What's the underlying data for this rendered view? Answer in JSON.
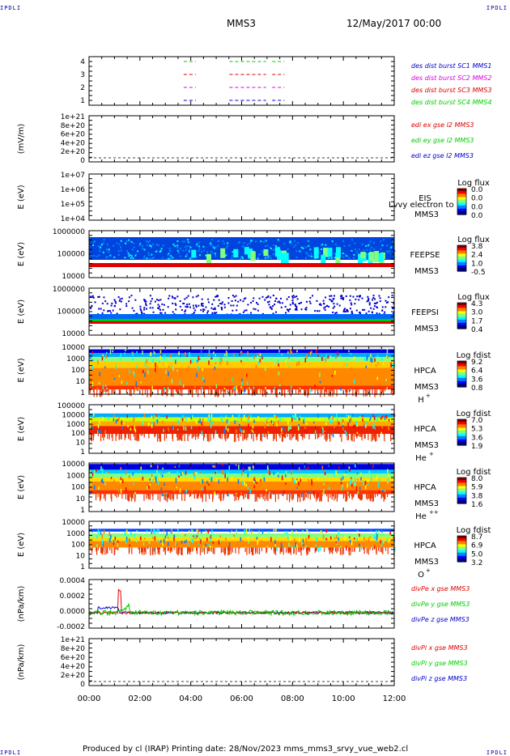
{
  "corner_mark": "IPDLI",
  "header": {
    "spacecraft": "MMS3",
    "date": "12/May/2017 00:00"
  },
  "footer": {
    "text": "Produced by cl (IRAP)   Printing date: 28/Nov/2023   mms_mms3_srvy_vue_web2.cl"
  },
  "colors": {
    "red": "#dd0000",
    "green": "#00cc00",
    "blue": "#0000cc",
    "magenta": "#dd00dd"
  },
  "chart_data": [
    {
      "type": "line",
      "id": "des",
      "ylabels": [
        "4",
        "3",
        "2",
        "1"
      ],
      "legend": [
        {
          "text": "des dist burst SC1 MMS1",
          "color": "#0000cc"
        },
        {
          "text": "des dist burst SC2 MMS2",
          "color": "#dd00dd"
        },
        {
          "text": "des dist burst SC3 MMS3",
          "color": "#dd0000"
        },
        {
          "text": "des dist burst SC4 MMS4",
          "color": "#00cc00"
        }
      ]
    },
    {
      "type": "line",
      "id": "edi",
      "ylabel": "(mV/m)",
      "ylabels": [
        "1e+21",
        "8e+20",
        "6e+20",
        "4e+20",
        "2e+20",
        "0"
      ],
      "legend": [
        {
          "text": "edi ex gse l2 MMS3",
          "color": "#dd0000"
        },
        {
          "text": "edi ey gse l2 MMS3",
          "color": "#00cc00"
        },
        {
          "text": "edi ez gse l2 MMS3",
          "color": "#0000cc"
        }
      ]
    },
    {
      "type": "heatmap",
      "id": "eis",
      "ylabel": "E (eV)",
      "ylabels": [
        "1e+07",
        "1e+06",
        "1e+05",
        "1e+04"
      ],
      "side": [
        "EIS",
        "MMS3"
      ],
      "overlay": "Lvvy electron to",
      "cbar_title": "Log flux",
      "cbar": [
        "0.0",
        "0.0",
        "0.0",
        "0.0"
      ]
    },
    {
      "type": "heatmap",
      "id": "feepse",
      "ylabel": "E (eV)",
      "ylabels": [
        "1000000",
        "100000",
        "10000"
      ],
      "side": [
        "FEEPSE",
        "MMS3"
      ],
      "cbar_title": "Log flux",
      "cbar": [
        "3.8",
        "2.4",
        "1.0",
        "-0.5"
      ]
    },
    {
      "type": "heatmap",
      "id": "feepsi",
      "ylabel": "E (eV)",
      "ylabels": [
        "1000000",
        "100000",
        "10000"
      ],
      "side": [
        "FEEPSI",
        "MMS3"
      ],
      "cbar_title": "Log flux",
      "cbar": [
        "4.3",
        "3.0",
        "1.7",
        "0.4"
      ]
    },
    {
      "type": "heatmap",
      "id": "hpca_h",
      "ylabel": "E (eV)",
      "ylabels": [
        "10000",
        "1000",
        "100",
        "10",
        "1"
      ],
      "side": [
        "HPCA",
        "MMS3",
        "H",
        "+"
      ],
      "cbar_title": "Log fdist",
      "cbar": [
        "9.2",
        "6.4",
        "3.6",
        "0.8"
      ]
    },
    {
      "type": "heatmap",
      "id": "hpca_he",
      "ylabel": "E (eV)",
      "ylabels": [
        "100000",
        "10000",
        "1000",
        "100",
        "10",
        "1"
      ],
      "side": [
        "HPCA",
        "MMS3",
        "He",
        "+"
      ],
      "cbar_title": "Log fdist",
      "cbar": [
        "7.0",
        "5.3",
        "3.6",
        "1.9"
      ]
    },
    {
      "type": "heatmap",
      "id": "hpca_hepp",
      "ylabel": "E (eV)",
      "ylabels": [
        "10000",
        "1000",
        "100",
        "10",
        "1"
      ],
      "side": [
        "HPCA",
        "MMS3",
        "He",
        "++"
      ],
      "cbar_title": "Log fdist",
      "cbar": [
        "8.0",
        "5.9",
        "3.8",
        "1.6"
      ]
    },
    {
      "type": "heatmap",
      "id": "hpca_o",
      "ylabel": "E (eV)",
      "ylabels": [
        "10000",
        "1000",
        "100",
        "10",
        "1"
      ],
      "side": [
        "HPCA",
        "MMS3",
        "O",
        "+"
      ],
      "cbar_title": "Log fdist",
      "cbar": [
        "8.7",
        "6.9",
        "5.0",
        "3.2"
      ]
    },
    {
      "type": "line",
      "id": "divpe",
      "ylabel": "(nPa/km)",
      "ylabels": [
        "0.0004",
        "0.0002",
        "0.0000",
        "-0.0002"
      ],
      "legend": [
        {
          "text": "divPe x gse MMS3",
          "color": "#dd0000"
        },
        {
          "text": "divPe y gse MMS3",
          "color": "#00cc00"
        },
        {
          "text": "divPe z gse MMS3",
          "color": "#0000cc"
        }
      ]
    },
    {
      "type": "line",
      "id": "divpi",
      "ylabel": "(nPa/km)",
      "ylabels": [
        "1e+21",
        "8e+20",
        "6e+20",
        "4e+20",
        "2e+20",
        "0"
      ],
      "legend": [
        {
          "text": "divPi x gse MMS3",
          "color": "#dd0000"
        },
        {
          "text": "divPi y gse MMS3",
          "color": "#00cc00"
        },
        {
          "text": "divPi z gse MMS3",
          "color": "#0000cc"
        }
      ]
    }
  ],
  "time_axis": {
    "labels": [
      "00:00",
      "02:00",
      "04:00",
      "06:00",
      "08:00",
      "10:00",
      "12:00"
    ],
    "range_hours": [
      0,
      12
    ]
  }
}
